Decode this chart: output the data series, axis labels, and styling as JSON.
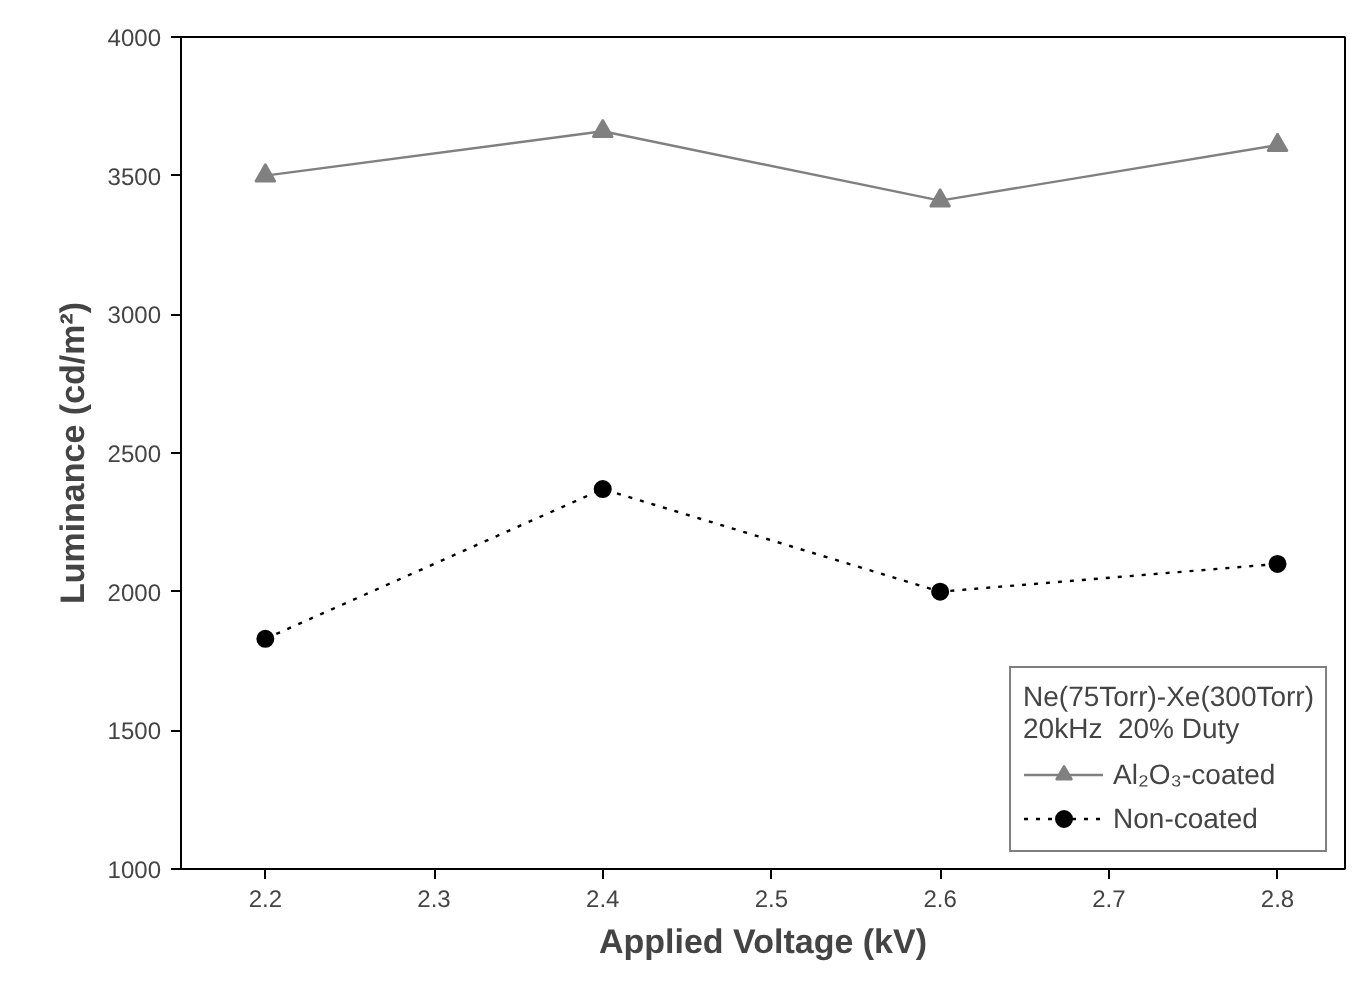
{
  "chart_data": {
    "type": "line",
    "xlabel": "Applied Voltage (kV)",
    "ylabel": "Luminance (cd/m²)",
    "legend_title": "Ne(75Torr)-Xe(300Torr)\n20kHz  20% Duty",
    "x": [
      2.2,
      2.4,
      2.6,
      2.8
    ],
    "series": [
      {
        "name": "Al₂O₃-coated",
        "color": "#808080",
        "values": [
          3500,
          3660,
          3410,
          3610
        ],
        "marker": "triangle",
        "line_style": "solid"
      },
      {
        "name": "Non-coated",
        "color": "#000000",
        "values": [
          1830,
          2370,
          2000,
          2100
        ],
        "marker": "circle",
        "line_style": "dotted"
      }
    ],
    "xlim": [
      2.15,
      2.84
    ],
    "ylim": [
      1000,
      4000
    ],
    "xticks": [
      2.2,
      2.3,
      2.4,
      2.5,
      2.6,
      2.7,
      2.8
    ],
    "yticks": [
      1000,
      1500,
      2000,
      2500,
      3000,
      3500,
      4000
    ],
    "grid": false,
    "legend": "bottom right"
  }
}
